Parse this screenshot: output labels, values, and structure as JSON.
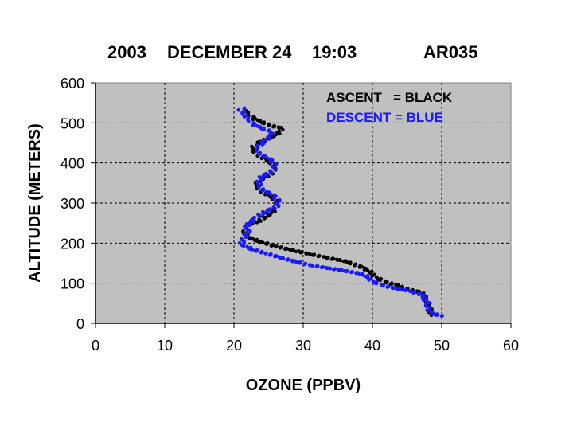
{
  "chart_data": {
    "type": "scatter",
    "title_parts": [
      "2003",
      "DECEMBER 24",
      "19:03",
      "AR035"
    ],
    "xlabel": "OZONE (PPBV)",
    "ylabel": "ALTITUDE (METERS)",
    "xlim": [
      0,
      60
    ],
    "ylim": [
      0,
      600
    ],
    "xticks": [
      "0",
      "10",
      "20",
      "30",
      "40",
      "50",
      "60"
    ],
    "yticks": [
      "0",
      "100",
      "200",
      "300",
      "400",
      "500",
      "600"
    ],
    "grid": true,
    "legend": {
      "placement": "top-right",
      "ascent_text": "ASCENT   = BLACK",
      "descent_text": "DESCENT = BLUE"
    },
    "colors": {
      "ascent": "#000000",
      "descent": "#1a1aff",
      "plot_bg": "#c0c0c0"
    },
    "series": [
      {
        "key": "ascent",
        "points": [
          [
            48.5,
            20
          ],
          [
            48.3,
            35
          ],
          [
            48.0,
            50
          ],
          [
            47.8,
            60
          ],
          [
            47.5,
            70
          ],
          [
            46.8,
            78
          ],
          [
            45.0,
            85
          ],
          [
            43.5,
            95
          ],
          [
            41.5,
            105
          ],
          [
            40.5,
            115
          ],
          [
            40.0,
            125
          ],
          [
            38.5,
            140
          ],
          [
            36.0,
            155
          ],
          [
            33.0,
            165
          ],
          [
            29.0,
            180
          ],
          [
            26.0,
            192
          ],
          [
            23.5,
            205
          ],
          [
            22.0,
            215
          ],
          [
            21.5,
            230
          ],
          [
            22.0,
            245
          ],
          [
            23.5,
            255
          ],
          [
            25.0,
            270
          ],
          [
            26.0,
            285
          ],
          [
            26.3,
            300
          ],
          [
            25.5,
            315
          ],
          [
            24.0,
            330
          ],
          [
            23.0,
            345
          ],
          [
            24.0,
            360
          ],
          [
            25.5,
            375
          ],
          [
            26.0,
            390
          ],
          [
            25.0,
            405
          ],
          [
            23.5,
            420
          ],
          [
            22.5,
            435
          ],
          [
            23.5,
            450
          ],
          [
            25.0,
            462
          ],
          [
            26.5,
            475
          ],
          [
            26.8,
            487
          ],
          [
            25.0,
            495
          ],
          [
            23.5,
            505
          ],
          [
            22.5,
            515
          ],
          [
            22.0,
            525
          ],
          [
            21.5,
            532
          ]
        ]
      },
      {
        "key": "descent",
        "points": [
          [
            50.0,
            18
          ],
          [
            48.5,
            25
          ],
          [
            48.0,
            40
          ],
          [
            47.8,
            55
          ],
          [
            47.5,
            65
          ],
          [
            47.0,
            72
          ],
          [
            45.5,
            80
          ],
          [
            43.0,
            88
          ],
          [
            41.0,
            97
          ],
          [
            40.0,
            105
          ],
          [
            39.5,
            115
          ],
          [
            38.0,
            125
          ],
          [
            34.5,
            135
          ],
          [
            31.0,
            145
          ],
          [
            27.5,
            160
          ],
          [
            24.5,
            175
          ],
          [
            22.5,
            185
          ],
          [
            21.5,
            195
          ],
          [
            21.0,
            200
          ],
          [
            21.5,
            215
          ],
          [
            22.0,
            230
          ],
          [
            22.0,
            245
          ],
          [
            23.0,
            262
          ],
          [
            24.5,
            278
          ],
          [
            26.0,
            290
          ],
          [
            26.5,
            305
          ],
          [
            25.5,
            320
          ],
          [
            24.0,
            335
          ],
          [
            23.5,
            350
          ],
          [
            24.0,
            365
          ],
          [
            25.5,
            380
          ],
          [
            26.0,
            395
          ],
          [
            25.0,
            410
          ],
          [
            23.5,
            425
          ],
          [
            23.5,
            440
          ],
          [
            24.5,
            455
          ],
          [
            25.5,
            470
          ],
          [
            25.0,
            480
          ],
          [
            23.5,
            490
          ],
          [
            22.5,
            500
          ],
          [
            22.0,
            512
          ],
          [
            21.5,
            522
          ],
          [
            21.0,
            532
          ],
          [
            21.5,
            537
          ]
        ]
      }
    ]
  }
}
